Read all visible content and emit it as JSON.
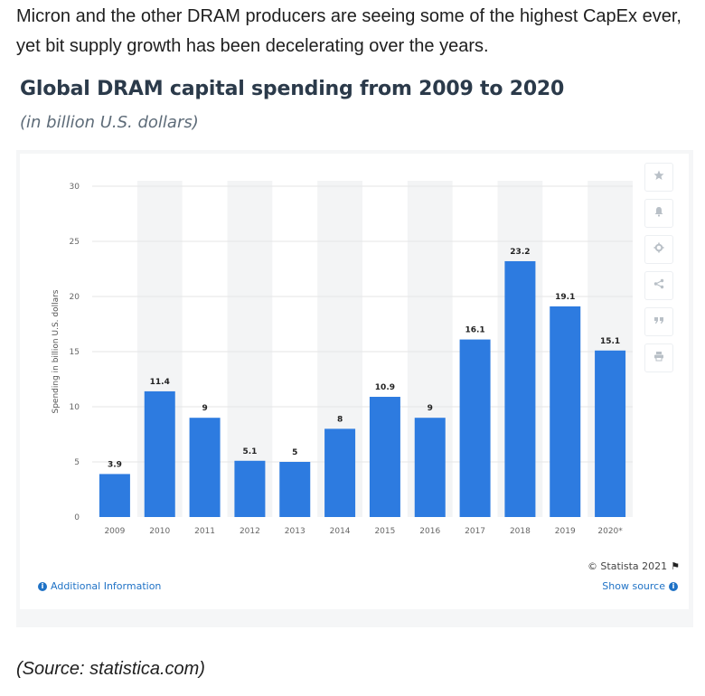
{
  "intro_text": "Micron and the other DRAM producers are seeing some of the highest CapEx ever, yet bit supply growth has been decelerating over the years.",
  "source_text": "(Source: statistica.com)",
  "widget": {
    "credit": "© Statista 2021",
    "additional_info": "Additional Information",
    "show_source": "Show source"
  },
  "tools": [
    {
      "icon": "star-icon"
    },
    {
      "icon": "bell-icon"
    },
    {
      "icon": "gear-icon"
    },
    {
      "icon": "share-icon"
    },
    {
      "icon": "quote-icon"
    },
    {
      "icon": "print-icon"
    }
  ],
  "colors": {
    "bar": "#2d7be0",
    "link": "#1f72c6",
    "title": "#2b3a4a"
  },
  "chart_data": {
    "type": "bar",
    "title": "Global DRAM capital spending from 2009 to 2020",
    "subtitle": "(in billion U.S. dollars)",
    "xlabel": "",
    "ylabel": "Spending in billion U.S. dollars",
    "categories": [
      "2009",
      "2010",
      "2011",
      "2012",
      "2013",
      "2014",
      "2015",
      "2016",
      "2017",
      "2018",
      "2019",
      "2020*"
    ],
    "values": [
      3.9,
      11.4,
      9,
      5.1,
      5,
      8,
      10.9,
      9,
      16.1,
      23.2,
      19.1,
      15.1
    ],
    "value_labels": [
      "3.9",
      "11.4",
      "9",
      "5.1",
      "5",
      "8",
      "10.9",
      "9",
      "16.1",
      "23.2",
      "19.1",
      "15.1"
    ],
    "ylim": [
      0,
      30
    ],
    "yticks": [
      "0",
      "5",
      "10",
      "15",
      "20",
      "25",
      "30"
    ],
    "grid": true,
    "legend": "none"
  }
}
